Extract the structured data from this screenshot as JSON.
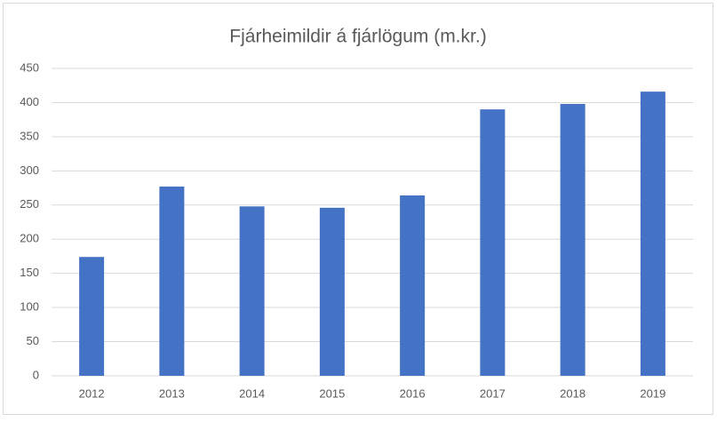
{
  "chart_data": {
    "type": "bar",
    "title": "Fjárheimildir á fjárlögum (m.kr.)",
    "categories": [
      "2012",
      "2013",
      "2014",
      "2015",
      "2016",
      "2017",
      "2018",
      "2019"
    ],
    "values": [
      174,
      277,
      248,
      246,
      264,
      390,
      398,
      416
    ],
    "color": "#4472c4",
    "ylim": [
      0,
      450
    ],
    "yticks": [
      0,
      50,
      100,
      150,
      200,
      250,
      300,
      350,
      400,
      450
    ],
    "grid": true
  }
}
